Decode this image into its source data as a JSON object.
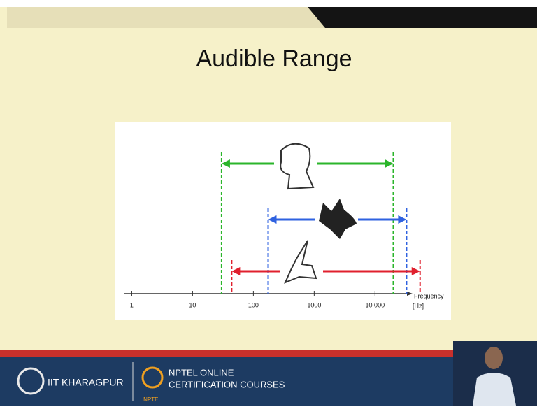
{
  "chart_data": {
    "type": "range",
    "title": "Audible Range",
    "x_label": "Frequency",
    "x_unit": "[Hz]",
    "xscale": "log",
    "xlim": [
      0.8,
      60000
    ],
    "xticks": [
      1,
      10,
      100,
      1000,
      {
        "value": 10000,
        "label": "10 000"
      }
    ],
    "series": [
      {
        "color": "#2bb52b",
        "values": [
          30,
          20000
        ]
      },
      {
        "color": "#2f62e0",
        "values": [
          175,
          33000
        ]
      },
      {
        "color": "#e0202e",
        "values": [
          44,
          55000
        ]
      }
    ]
  },
  "footer": {
    "institute": "IIT KHARAGPUR",
    "course_line1": "NPTEL ONLINE",
    "course_line2": "CERTIFICATION COURSES",
    "logo_text": "NPTEL"
  }
}
